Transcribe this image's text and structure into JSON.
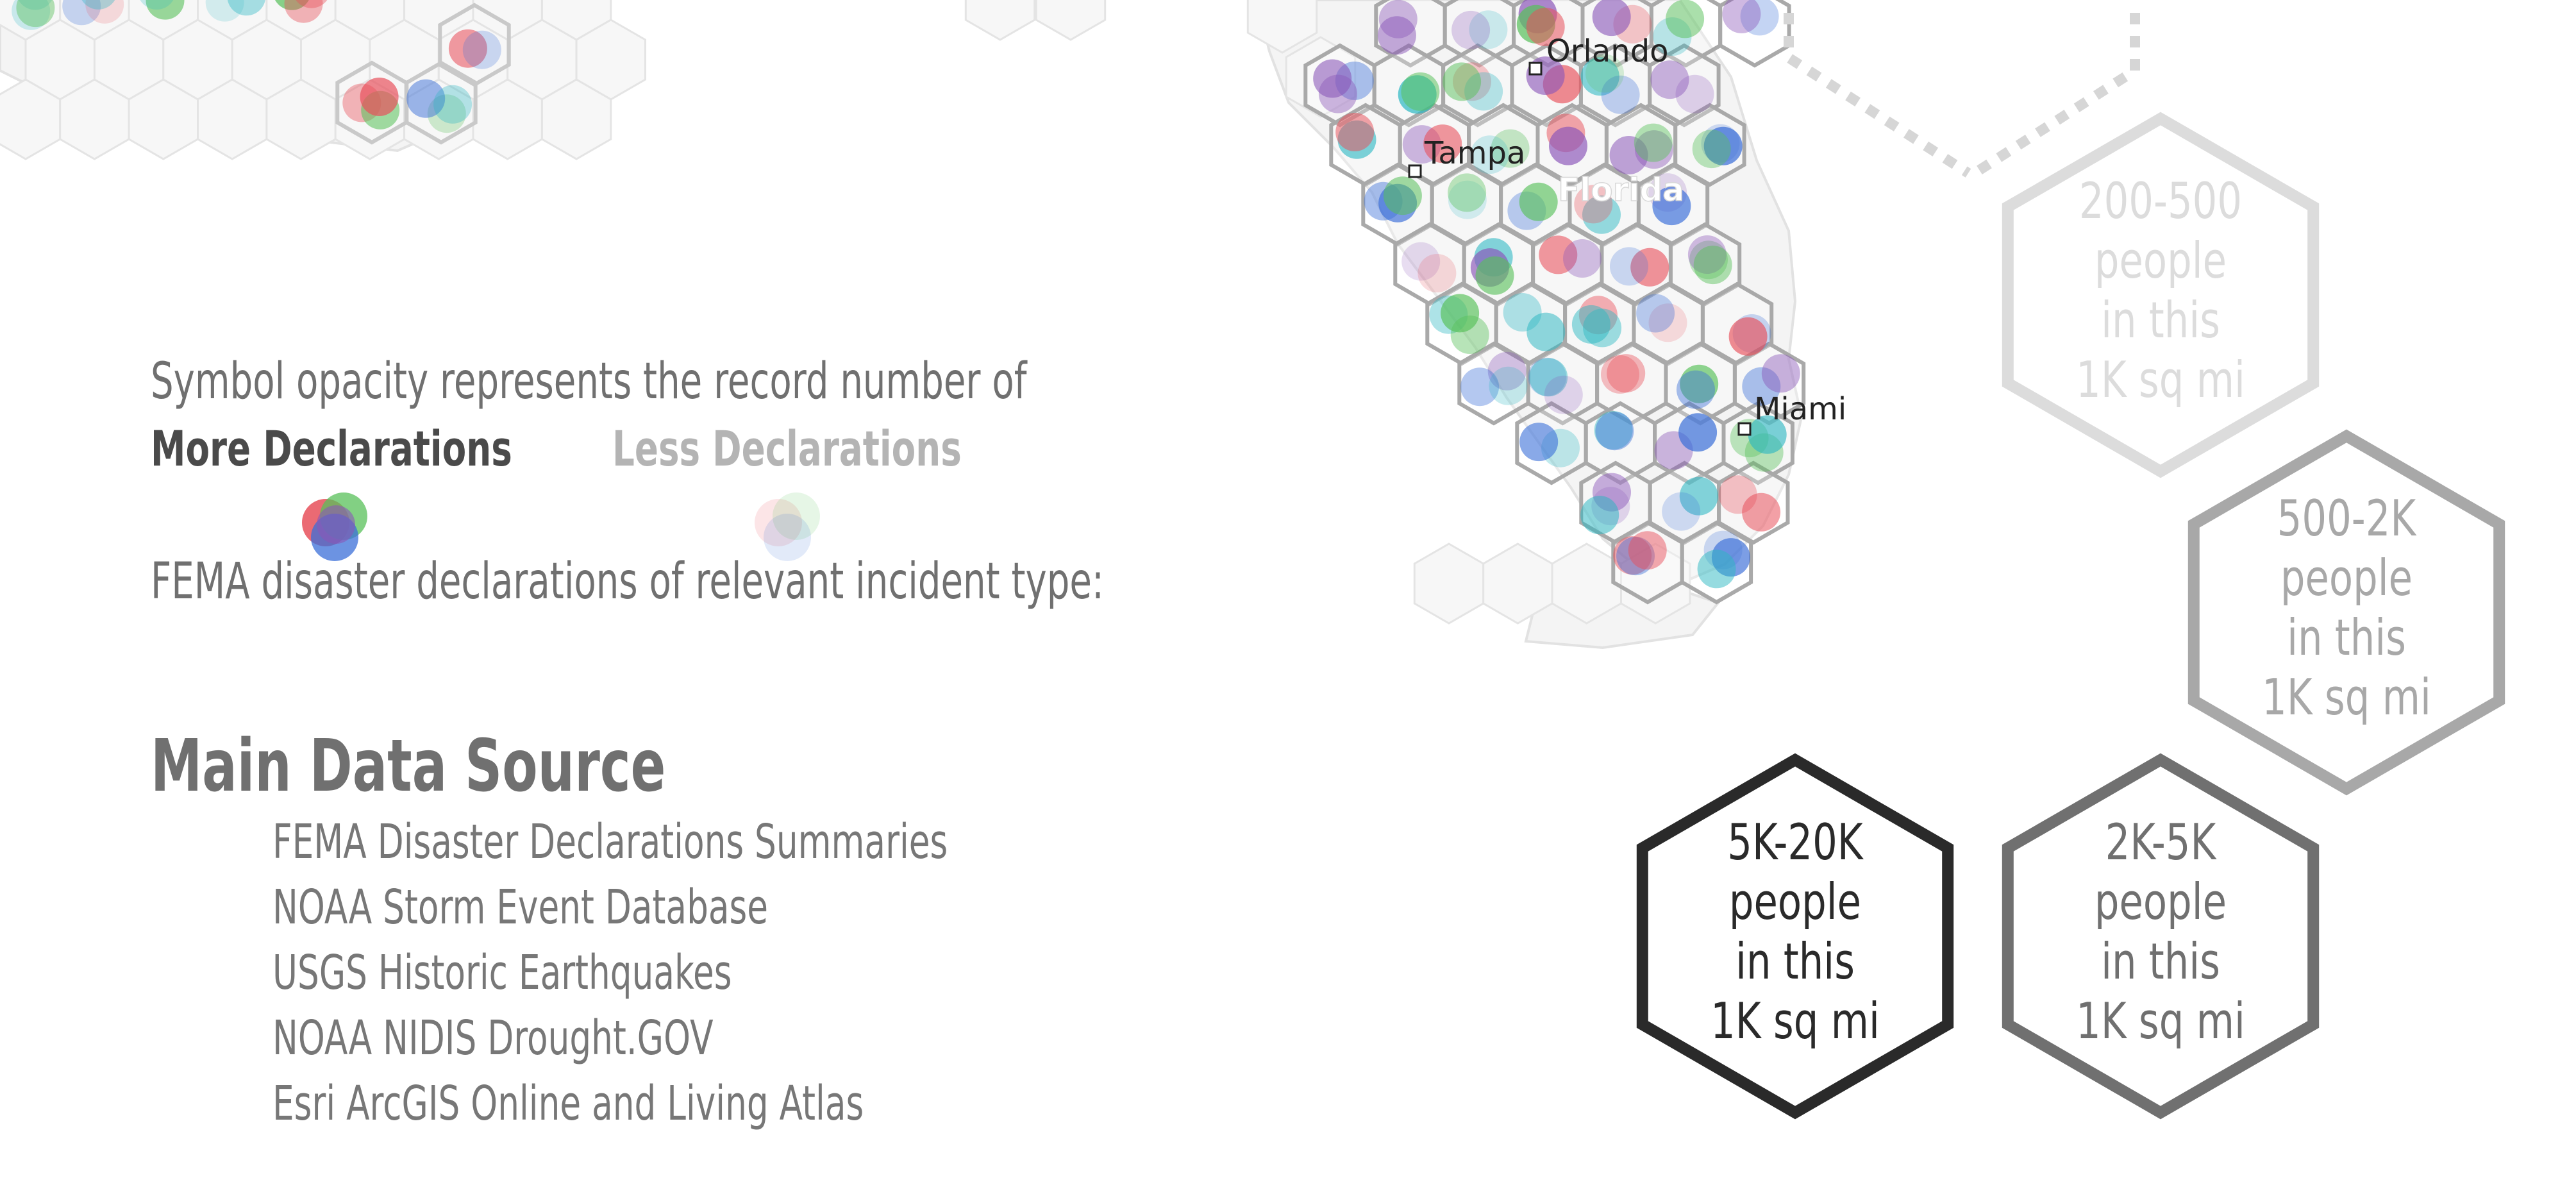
{
  "legend": {
    "opacity_note_line1": "Symbol opacity represents the record number of",
    "opacity_note_line2": "FEMA disaster declarations of relevant incident type:",
    "more_label": "More Declarations",
    "less_label": "Less Declarations",
    "symbol_colors": {
      "red": "#e8505b",
      "teal": "#2bb7c2",
      "purple": "#8a56b8",
      "blue": "#3b6fd8",
      "green": "#58c05a"
    }
  },
  "sources": {
    "title": "Main Data Source",
    "items": [
      "FEMA Disaster Declarations Summaries",
      "NOAA Storm Event Database",
      "USGS Historic Earthquakes",
      "NOAA NIDIS Drought.GOV",
      "Esri ArcGIS Online and Living Atlas"
    ]
  },
  "map": {
    "state_label": "Florida",
    "cities": [
      {
        "name": "Orlando"
      },
      {
        "name": "Tampa"
      },
      {
        "name": "Miami"
      }
    ]
  },
  "population_legend": [
    {
      "range": "200-500",
      "line2": "people",
      "line3": "in this",
      "line4": "1K sq mi",
      "color": "#dcdcdc"
    },
    {
      "range": "500-2K",
      "line2": "people",
      "line3": "in this",
      "line4": "1K sq mi",
      "color": "#a8a8a8"
    },
    {
      "range": "2K-5K",
      "line2": "people",
      "line3": "in this",
      "line4": "1K sq mi",
      "color": "#707070"
    },
    {
      "range": "5K-20K",
      "line2": "people",
      "line3": "in this",
      "line4": "1K sq mi",
      "color": "#2a2a2a"
    }
  ]
}
